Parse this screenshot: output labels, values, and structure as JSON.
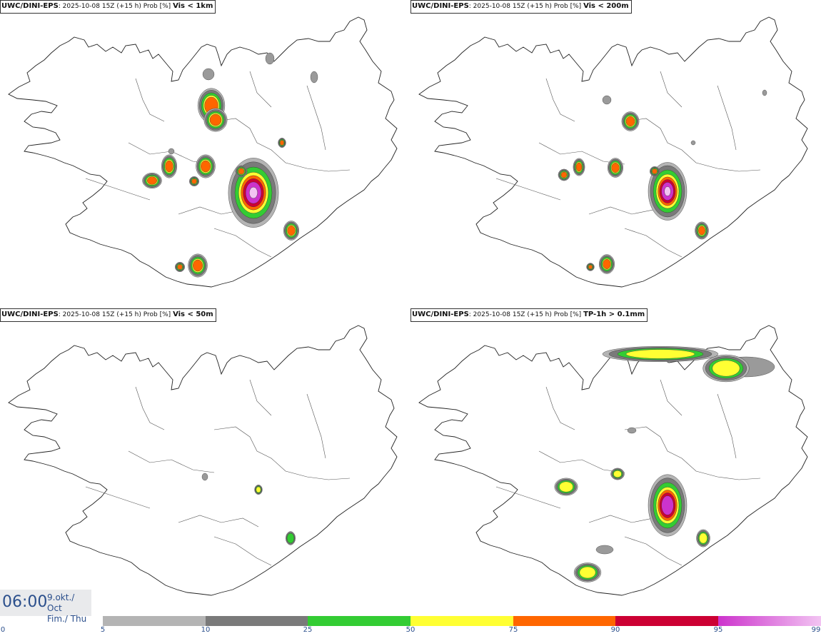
{
  "panels": [
    {
      "model": "UWC/DINI-EPS",
      "run": "2025-10-08 15Z (+15 h) Prob [%]",
      "variable": "Vis < 1km"
    },
    {
      "model": "UWC/DINI-EPS",
      "run": "2025-10-08 15Z (+15 h) Prob [%]",
      "variable": "Vis < 200m"
    },
    {
      "model": "UWC/DINI-EPS",
      "run": "2025-10-08 15Z (+15 h) Prob [%]",
      "variable": "Vis < 50m"
    },
    {
      "model": "UWC/DINI-EPS",
      "run": "2025-10-08 15Z (+15 h) Prob [%]",
      "variable": "TP-1h > 0.1mm"
    }
  ],
  "valid_time": {
    "time": "06:00",
    "date_line1": "9.okt./ Oct",
    "date_line2": "Fim./ Thu"
  },
  "colorbar": {
    "ticks": [
      "0",
      "5",
      "10",
      "25",
      "50",
      "75",
      "90",
      "95",
      "99"
    ],
    "colors": [
      "#ffffff",
      "#b4b4b4",
      "#7a7a7a",
      "#33cc33",
      "#ffff33",
      "#ff6600",
      "#cc0033",
      "#cc33cc",
      "#f2c4f2"
    ]
  }
}
